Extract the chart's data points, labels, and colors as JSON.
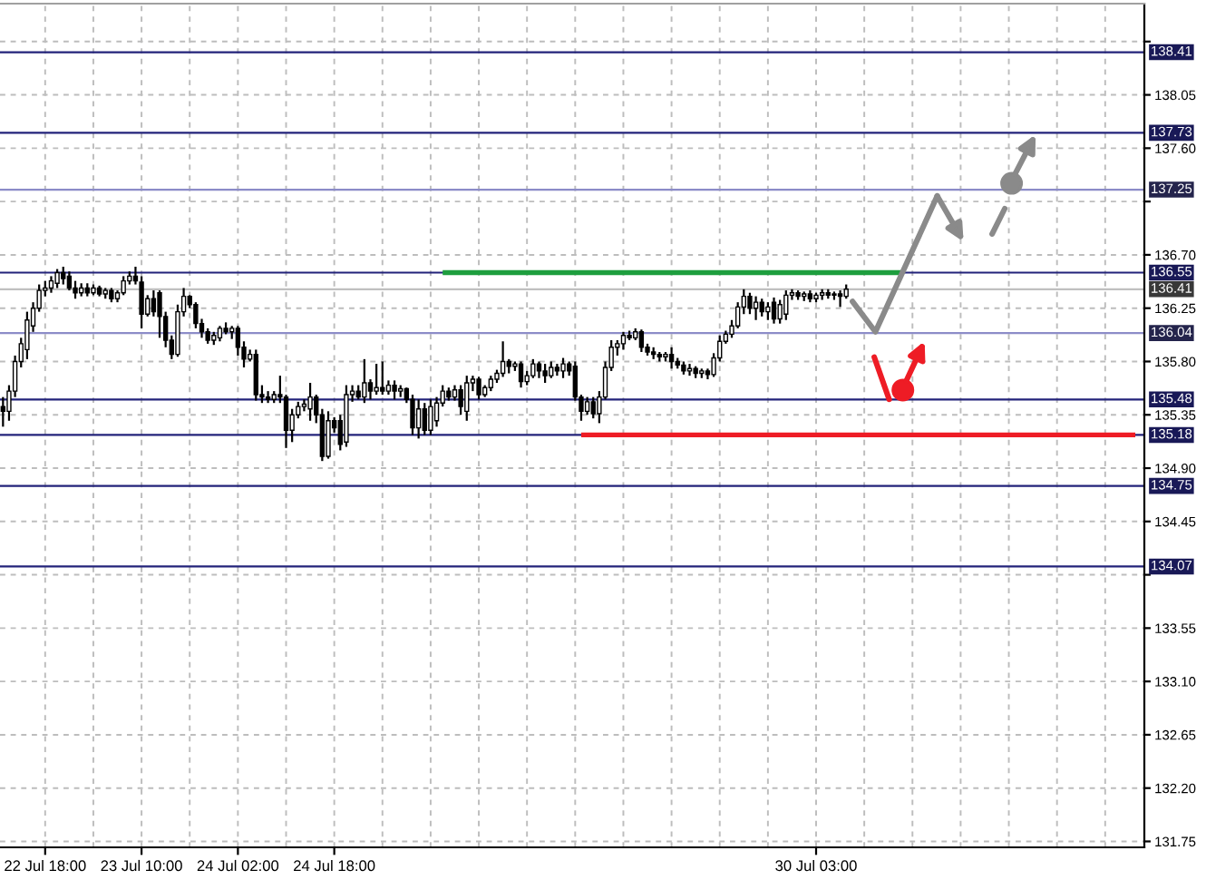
{
  "chart_data": {
    "type": "candlestick",
    "categories": [
      null,
      null,
      null,
      null,
      null,
      null,
      null,
      "22 Jul 18:00",
      null,
      null,
      null,
      null,
      null,
      null,
      null,
      null,
      null,
      null,
      null,
      null,
      null,
      null,
      null,
      "23 Jul 10:00",
      null,
      null,
      null,
      null,
      null,
      null,
      null,
      null,
      null,
      null,
      null,
      null,
      null,
      null,
      null,
      "24 Jul 02:00",
      null,
      null,
      null,
      null,
      null,
      null,
      null,
      null,
      null,
      null,
      null,
      null,
      null,
      null,
      null,
      "24 Jul 18:00",
      null,
      null,
      null,
      null,
      null,
      null,
      null,
      null,
      null,
      null,
      null,
      null,
      null,
      null,
      null,
      null,
      null,
      null,
      null,
      null,
      null,
      null,
      null,
      null,
      null,
      null,
      null,
      null,
      null,
      null,
      null,
      null,
      null,
      null,
      null,
      null,
      null,
      null,
      null,
      null,
      null,
      null,
      null,
      null,
      null,
      null,
      null,
      null,
      null,
      null,
      null,
      null,
      null,
      null,
      null,
      null,
      null,
      null,
      null,
      null,
      null,
      null,
      null,
      null,
      null,
      null,
      null,
      null,
      null,
      null,
      null,
      null,
      null,
      null,
      null,
      null,
      null,
      null,
      null,
      "30 Jul 03:00",
      null,
      null,
      null,
      null,
      null,
      null,
      null,
      null,
      null,
      null,
      null,
      null,
      null,
      null,
      null,
      null,
      null,
      null,
      null,
      null,
      null,
      null,
      null,
      null,
      null,
      null,
      null,
      null,
      null,
      null,
      null,
      null,
      null,
      null,
      null,
      null,
      null,
      null,
      null,
      null,
      null,
      null,
      null,
      null,
      null,
      null,
      null,
      null,
      null,
      null,
      null,
      null,
      null,
      null
    ],
    "ohlc": [
      [
        135.42,
        135.5,
        135.25,
        135.38
      ],
      [
        135.38,
        135.6,
        135.3,
        135.55
      ],
      [
        135.55,
        135.85,
        135.5,
        135.8
      ],
      [
        135.8,
        136.0,
        135.75,
        135.95
      ],
      [
        135.9,
        136.22,
        135.82,
        136.15
      ],
      [
        136.1,
        136.3,
        136.05,
        136.25
      ],
      [
        136.25,
        136.45,
        136.22,
        136.4
      ],
      [
        136.4,
        136.48,
        136.35,
        136.42
      ],
      [
        136.42,
        136.52,
        136.38,
        136.48
      ],
      [
        136.46,
        136.58,
        136.42,
        136.55
      ],
      [
        136.55,
        136.6,
        136.45,
        136.5
      ],
      [
        136.52,
        136.56,
        136.4,
        136.42
      ],
      [
        136.42,
        136.48,
        136.33,
        136.38
      ],
      [
        136.38,
        136.46,
        136.35,
        136.42
      ],
      [
        136.42,
        136.46,
        136.35,
        136.38
      ],
      [
        136.38,
        136.45,
        136.36,
        136.42
      ],
      [
        136.42,
        136.44,
        136.35,
        136.37
      ],
      [
        136.37,
        136.42,
        136.33,
        136.4
      ],
      [
        136.4,
        136.42,
        136.3,
        136.33
      ],
      [
        136.33,
        136.4,
        136.3,
        136.38
      ],
      [
        136.38,
        136.52,
        136.36,
        136.48
      ],
      [
        136.48,
        136.56,
        136.45,
        136.52
      ],
      [
        136.52,
        136.6,
        136.45,
        136.48
      ],
      [
        136.47,
        136.52,
        136.08,
        136.2
      ],
      [
        136.2,
        136.36,
        136.18,
        136.33
      ],
      [
        136.33,
        136.4,
        136.18,
        136.22
      ],
      [
        136.38,
        136.4,
        136.0,
        136.18
      ],
      [
        136.18,
        136.22,
        135.92,
        135.98
      ],
      [
        135.98,
        136.02,
        135.82,
        135.86
      ],
      [
        135.86,
        136.28,
        135.84,
        136.22
      ],
      [
        136.22,
        136.42,
        136.18,
        136.35
      ],
      [
        136.35,
        136.36,
        136.25,
        136.28
      ],
      [
        136.28,
        136.3,
        136.08,
        136.12
      ],
      [
        136.12,
        136.16,
        136.0,
        136.05
      ],
      [
        136.05,
        136.08,
        135.95,
        135.98
      ],
      [
        135.98,
        136.05,
        135.94,
        136.02
      ],
      [
        136.0,
        136.1,
        135.97,
        136.08
      ],
      [
        136.08,
        136.13,
        136.03,
        136.05
      ],
      [
        136.05,
        136.1,
        135.99,
        136.08
      ],
      [
        136.08,
        136.1,
        135.85,
        135.92
      ],
      [
        135.92,
        135.97,
        135.75,
        135.82
      ],
      [
        135.82,
        135.9,
        135.8,
        135.86
      ],
      [
        135.86,
        135.9,
        135.47,
        135.52
      ],
      [
        135.52,
        135.6,
        135.45,
        135.5
      ],
      [
        135.5,
        135.55,
        135.45,
        135.48
      ],
      [
        135.48,
        135.55,
        135.45,
        135.52
      ],
      [
        135.52,
        135.68,
        135.45,
        135.5
      ],
      [
        135.5,
        135.52,
        135.07,
        135.22
      ],
      [
        135.22,
        135.4,
        135.12,
        135.35
      ],
      [
        135.35,
        135.46,
        135.32,
        135.42
      ],
      [
        135.42,
        135.48,
        135.38,
        135.44
      ],
      [
        135.4,
        135.62,
        135.3,
        135.5
      ],
      [
        135.5,
        135.52,
        135.28,
        135.35
      ],
      [
        135.35,
        135.4,
        134.96,
        135.0
      ],
      [
        135.0,
        135.38,
        134.98,
        135.3
      ],
      [
        135.3,
        135.33,
        135.2,
        135.24
      ],
      [
        135.3,
        135.35,
        135.05,
        135.1
      ],
      [
        135.12,
        135.6,
        135.08,
        135.52
      ],
      [
        135.52,
        135.6,
        135.46,
        135.55
      ],
      [
        135.55,
        135.6,
        135.48,
        135.5
      ],
      [
        135.5,
        135.82,
        135.45,
        135.62
      ],
      [
        135.62,
        135.65,
        135.48,
        135.55
      ],
      [
        135.55,
        135.78,
        135.52,
        135.58
      ],
      [
        135.58,
        135.8,
        135.52,
        135.55
      ],
      [
        135.55,
        135.64,
        135.52,
        135.6
      ],
      [
        135.6,
        135.64,
        135.48,
        135.55
      ],
      [
        135.55,
        135.6,
        135.5,
        135.57
      ],
      [
        135.57,
        135.58,
        135.45,
        135.48
      ],
      [
        135.48,
        135.52,
        135.18,
        135.24
      ],
      [
        135.24,
        135.48,
        135.15,
        135.4
      ],
      [
        135.4,
        135.45,
        135.18,
        135.22
      ],
      [
        135.22,
        135.48,
        135.18,
        135.42
      ],
      [
        135.3,
        135.5,
        135.25,
        135.45
      ],
      [
        135.45,
        135.6,
        135.42,
        135.55
      ],
      [
        135.55,
        135.58,
        135.47,
        135.5
      ],
      [
        135.5,
        135.6,
        135.47,
        135.56
      ],
      [
        135.56,
        135.6,
        135.35,
        135.42
      ],
      [
        135.38,
        135.68,
        135.3,
        135.62
      ],
      [
        135.62,
        135.68,
        135.55,
        135.65
      ],
      [
        135.65,
        135.67,
        135.48,
        135.52
      ],
      [
        135.52,
        135.6,
        135.5,
        135.58
      ],
      [
        135.58,
        135.68,
        135.55,
        135.65
      ],
      [
        135.65,
        135.73,
        135.62,
        135.7
      ],
      [
        135.7,
        135.97,
        135.67,
        135.8
      ],
      [
        135.8,
        135.82,
        135.7,
        135.76
      ],
      [
        135.76,
        135.8,
        135.72,
        135.78
      ],
      [
        135.78,
        135.8,
        135.58,
        135.63
      ],
      [
        135.63,
        135.72,
        135.6,
        135.68
      ],
      [
        135.68,
        135.82,
        135.66,
        135.78
      ],
      [
        135.78,
        135.8,
        135.66,
        135.72
      ],
      [
        135.72,
        135.78,
        135.62,
        135.68
      ],
      [
        135.68,
        135.8,
        135.66,
        135.75
      ],
      [
        135.75,
        135.78,
        135.68,
        135.72
      ],
      [
        135.72,
        135.83,
        135.66,
        135.78
      ],
      [
        135.78,
        135.8,
        135.68,
        135.72
      ],
      [
        135.76,
        135.8,
        135.47,
        135.5
      ],
      [
        135.5,
        135.52,
        135.3,
        135.38
      ],
      [
        135.38,
        135.5,
        135.35,
        135.46
      ],
      [
        135.46,
        135.5,
        135.32,
        135.36
      ],
      [
        135.36,
        135.55,
        135.28,
        135.5
      ],
      [
        135.5,
        135.8,
        135.48,
        135.75
      ],
      [
        135.75,
        135.98,
        135.72,
        135.92
      ],
      [
        135.92,
        135.98,
        135.85,
        135.95
      ],
      [
        135.95,
        136.05,
        135.9,
        136.02
      ],
      [
        136.02,
        136.06,
        135.98,
        136.0
      ],
      [
        136.0,
        136.08,
        135.98,
        136.05
      ],
      [
        136.05,
        136.07,
        135.88,
        135.92
      ],
      [
        135.92,
        135.95,
        135.85,
        135.88
      ],
      [
        135.88,
        135.92,
        135.82,
        135.86
      ],
      [
        135.86,
        135.88,
        135.8,
        135.84
      ],
      [
        135.84,
        135.88,
        135.8,
        135.86
      ],
      [
        135.86,
        135.92,
        135.74,
        135.8
      ],
      [
        135.8,
        135.83,
        135.74,
        135.77
      ],
      [
        135.77,
        135.8,
        135.69,
        135.72
      ],
      [
        135.72,
        135.78,
        135.68,
        135.74
      ],
      [
        135.74,
        135.76,
        135.66,
        135.7
      ],
      [
        135.7,
        135.74,
        135.66,
        135.72
      ],
      [
        135.72,
        135.74,
        135.65,
        135.69
      ],
      [
        135.69,
        135.87,
        135.67,
        135.83
      ],
      [
        135.83,
        136.02,
        135.8,
        135.97
      ],
      [
        135.97,
        136.06,
        135.95,
        136.03
      ],
      [
        136.03,
        136.15,
        136.0,
        136.1
      ],
      [
        136.1,
        136.3,
        136.08,
        136.26
      ],
      [
        136.26,
        136.41,
        136.2,
        136.35
      ],
      [
        136.35,
        136.38,
        136.2,
        136.25
      ],
      [
        136.25,
        136.35,
        136.15,
        136.3
      ],
      [
        136.3,
        136.33,
        136.18,
        136.22
      ],
      [
        136.22,
        136.3,
        136.15,
        136.26
      ],
      [
        136.3,
        136.34,
        136.12,
        136.16
      ],
      [
        136.16,
        136.32,
        136.12,
        136.28
      ],
      [
        136.2,
        136.4,
        136.15,
        136.36
      ],
      [
        136.36,
        136.41,
        136.32,
        136.38
      ],
      [
        136.38,
        136.4,
        136.32,
        136.35
      ],
      [
        136.35,
        136.39,
        136.31,
        136.37
      ],
      [
        136.37,
        136.4,
        136.3,
        136.33
      ],
      [
        136.33,
        136.38,
        136.3,
        136.36
      ],
      [
        136.36,
        136.41,
        136.32,
        136.38
      ],
      [
        136.38,
        136.41,
        136.33,
        136.36
      ],
      [
        136.36,
        136.39,
        136.32,
        136.37
      ],
      [
        136.37,
        136.4,
        136.26,
        136.35
      ],
      [
        136.35,
        136.45,
        136.33,
        136.41
      ],
      null,
      null,
      null,
      null,
      null,
      null,
      null,
      null,
      null,
      null,
      null,
      null,
      null,
      null,
      null,
      null,
      null,
      null,
      null,
      null,
      null,
      null,
      null,
      null,
      null,
      null,
      null,
      null,
      null,
      null,
      null,
      null,
      null,
      null,
      null,
      null,
      null,
      null,
      null,
      null,
      null,
      null,
      null,
      null,
      null,
      null,
      null,
      null,
      null
    ],
    "ylim": [
      131.7,
      138.82
    ],
    "yticks": [
      131.75,
      {
        "value": 132.2,
        "label": "132.20"
      },
      132.65,
      {
        "value": 133.1,
        "label": "133.10"
      },
      133.55,
      {
        "value": 134.0,
        "label": null
      },
      134.45,
      {
        "value": 134.9,
        "label": "134.90"
      },
      135.35,
      {
        "value": 135.8,
        "label": "135.80"
      },
      136.25,
      {
        "value": 136.7,
        "label": "136.70"
      },
      {
        "value": 137.15,
        "label": null
      },
      {
        "value": 137.6,
        "label": "137.60"
      },
      138.05,
      {
        "value": 138.5,
        "label": null
      }
    ],
    "grid": true,
    "ref_lines": [
      {
        "axis": "y",
        "value": 138.41,
        "label": "138.41",
        "color": "#23237a"
      },
      {
        "axis": "y",
        "value": 137.73,
        "label": "137.73",
        "color": "#23237a"
      },
      {
        "axis": "y",
        "value": 137.25,
        "label": "137.25",
        "color": "#8c8cc8"
      },
      {
        "axis": "y",
        "value": 136.55,
        "label": "136.55",
        "color": "#23237a"
      },
      {
        "axis": "y",
        "value": 136.41,
        "label": "136.41",
        "color": "#c0c0c0"
      },
      {
        "axis": "y",
        "value": 136.04,
        "label": "136.04",
        "color": "#8c8cc8"
      },
      {
        "axis": "y",
        "value": 135.48,
        "label": "135.48",
        "color": "#23237a"
      },
      {
        "axis": "y",
        "value": 135.18,
        "label": "135.18",
        "color": "#23237a"
      },
      {
        "axis": "y",
        "value": 134.75,
        "label": "134.75",
        "color": "#23237a"
      },
      {
        "axis": "y",
        "value": 134.07,
        "label": "134.07",
        "color": "#23237a"
      }
    ],
    "series": [
      {
        "type": "line",
        "color": "#1e9e3e",
        "values": [
          null,
          null,
          null,
          null,
          null,
          null,
          null,
          null,
          null,
          null,
          null,
          null,
          null,
          null,
          null,
          null,
          null,
          null,
          null,
          null,
          null,
          null,
          null,
          null,
          null,
          null,
          null,
          null,
          null,
          null,
          null,
          null,
          null,
          null,
          null,
          null,
          null,
          null,
          null,
          null,
          null,
          null,
          null,
          null,
          null,
          null,
          null,
          null,
          null,
          null,
          null,
          null,
          null,
          null,
          null,
          null,
          null,
          null,
          null,
          null,
          null,
          null,
          null,
          null,
          null,
          null,
          null,
          null,
          null,
          null,
          null,
          null,
          null,
          136.55,
          136.55,
          136.55,
          136.55,
          136.55,
          136.55,
          136.55,
          136.55,
          136.55,
          136.55,
          136.55,
          136.55,
          136.55,
          136.55,
          136.55,
          136.55,
          136.55,
          136.55,
          136.55,
          136.55,
          136.55,
          136.55,
          136.55,
          136.55,
          136.55,
          136.55,
          136.55,
          136.55,
          136.55,
          136.55,
          136.55,
          136.55,
          136.55,
          136.55,
          136.55,
          136.55,
          136.55,
          136.55,
          136.55,
          136.55,
          136.55,
          136.55,
          136.55,
          136.55,
          136.55,
          136.55,
          136.55,
          136.55,
          136.55,
          136.55,
          136.55,
          136.55,
          136.55,
          136.55,
          136.55,
          136.55,
          136.55,
          136.55,
          136.55,
          136.55,
          136.55,
          136.55,
          136.55,
          136.55,
          136.55,
          136.55,
          136.55,
          136.55,
          136.55,
          136.55,
          136.55,
          136.55,
          136.55,
          136.55,
          136.55,
          136.55,
          136.55,
          null,
          null,
          null,
          null,
          null,
          null,
          null,
          null,
          null,
          null,
          null,
          null,
          null,
          null,
          null,
          null,
          null,
          null,
          null,
          null,
          null,
          null,
          null,
          null,
          null,
          null,
          null,
          null,
          null,
          null,
          null,
          null,
          null,
          null,
          null,
          null,
          null,
          null,
          null,
          null
        ]
      },
      {
        "type": "line",
        "color": "#ee1c25",
        "values": [
          null,
          null,
          null,
          null,
          null,
          null,
          null,
          null,
          null,
          null,
          null,
          null,
          null,
          null,
          null,
          null,
          null,
          null,
          null,
          null,
          null,
          null,
          null,
          null,
          null,
          null,
          null,
          null,
          null,
          null,
          null,
          null,
          null,
          null,
          null,
          null,
          null,
          null,
          null,
          null,
          null,
          null,
          null,
          null,
          null,
          null,
          null,
          null,
          null,
          null,
          null,
          null,
          null,
          null,
          null,
          null,
          null,
          null,
          null,
          null,
          null,
          null,
          null,
          null,
          null,
          null,
          null,
          null,
          null,
          null,
          null,
          null,
          null,
          null,
          null,
          null,
          null,
          null,
          null,
          null,
          null,
          null,
          null,
          null,
          null,
          null,
          null,
          null,
          null,
          null,
          null,
          null,
          null,
          null,
          null,
          null,
          135.18,
          135.18,
          135.18,
          135.18,
          135.18,
          135.18,
          135.18,
          135.18,
          135.18,
          135.18,
          135.18,
          135.18,
          135.18,
          135.18,
          135.18,
          135.18,
          135.18,
          135.18,
          135.18,
          135.18,
          135.18,
          135.18,
          135.18,
          135.18,
          135.18,
          135.18,
          135.18,
          135.18,
          135.18,
          135.18,
          135.18,
          135.18,
          135.18,
          135.18,
          135.18,
          135.18,
          135.18,
          135.18,
          135.18,
          135.18,
          135.18,
          135.18,
          135.18,
          135.18,
          135.18,
          135.18,
          135.18,
          135.18,
          135.18,
          135.18,
          135.18,
          135.18,
          135.18,
          135.18,
          135.18,
          135.18,
          135.18,
          135.18,
          135.18,
          135.18,
          135.18,
          135.18,
          135.18,
          135.18,
          135.18,
          135.18,
          135.18,
          135.18,
          135.18,
          135.18,
          135.18,
          135.18,
          135.18,
          135.18,
          135.18,
          135.18,
          135.18,
          135.18,
          135.18,
          135.18,
          135.18,
          135.18,
          135.18,
          135.18,
          135.18,
          135.18,
          135.18,
          135.18,
          135.18,
          135.18,
          135.18,
          135.18,
          135.18,
          null
        ]
      }
    ]
  }
}
